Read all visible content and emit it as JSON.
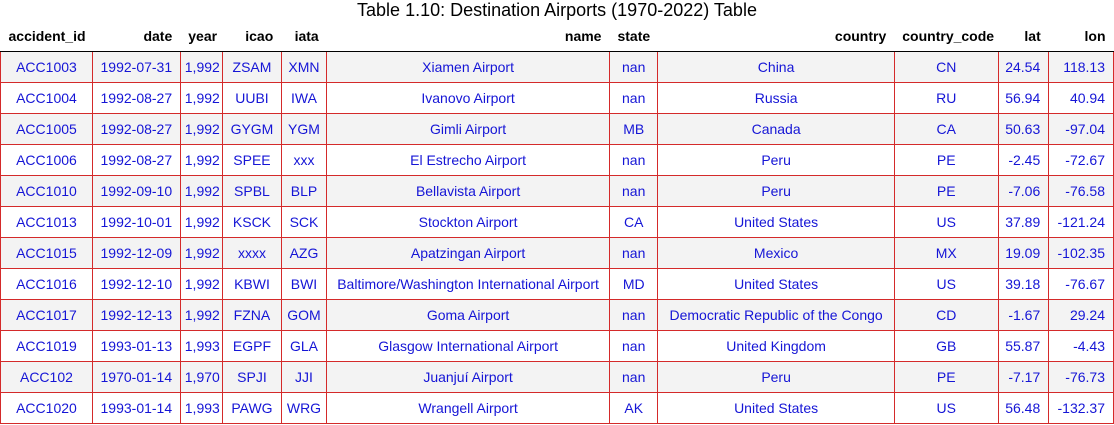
{
  "caption": "Table 1.10: Destination Airports (1970-2022) Table",
  "columns": [
    "accident_id",
    "date",
    "year",
    "icao",
    "iata",
    "name",
    "state",
    "country",
    "country_code",
    "lat",
    "lon"
  ],
  "rows": [
    [
      "ACC1003",
      "1992-07-31",
      "1,992",
      "ZSAM",
      "XMN",
      "Xiamen Airport",
      "nan",
      "China",
      "CN",
      "24.54",
      "118.13"
    ],
    [
      "ACC1004",
      "1992-08-27",
      "1,992",
      "UUBI",
      "IWA",
      "Ivanovo Airport",
      "nan",
      "Russia",
      "RU",
      "56.94",
      "40.94"
    ],
    [
      "ACC1005",
      "1992-08-27",
      "1,992",
      "GYGM",
      "YGM",
      "Gimli Airport",
      "MB",
      "Canada",
      "CA",
      "50.63",
      "-97.04"
    ],
    [
      "ACC1006",
      "1992-08-27",
      "1,992",
      "SPEE",
      "xxx",
      "El Estrecho Airport",
      "nan",
      "Peru",
      "PE",
      "-2.45",
      "-72.67"
    ],
    [
      "ACC1010",
      "1992-09-10",
      "1,992",
      "SPBL",
      "BLP",
      "Bellavista Airport",
      "nan",
      "Peru",
      "PE",
      "-7.06",
      "-76.58"
    ],
    [
      "ACC1013",
      "1992-10-01",
      "1,992",
      "KSCK",
      "SCK",
      "Stockton Airport",
      "CA",
      "United States",
      "US",
      "37.89",
      "-121.24"
    ],
    [
      "ACC1015",
      "1992-12-09",
      "1,992",
      "xxxx",
      "AZG",
      "Apatzingan Airport",
      "nan",
      "Mexico",
      "MX",
      "19.09",
      "-102.35"
    ],
    [
      "ACC1016",
      "1992-12-10",
      "1,992",
      "KBWI",
      "BWI",
      "Baltimore/Washington International Airport",
      "MD",
      "United States",
      "US",
      "39.18",
      "-76.67"
    ],
    [
      "ACC1017",
      "1992-12-13",
      "1,992",
      "FZNA",
      "GOM",
      "Goma Airport",
      "nan",
      "Democratic Republic of the Congo",
      "CD",
      "-1.67",
      "29.24"
    ],
    [
      "ACC1019",
      "1993-01-13",
      "1,993",
      "EGPF",
      "GLA",
      "Glasgow International Airport",
      "nan",
      "United Kingdom",
      "GB",
      "55.87",
      "-4.43"
    ],
    [
      "ACC102",
      "1970-01-14",
      "1,970",
      "SPJI",
      "JJI",
      "Juanjuí Airport",
      "nan",
      "Peru",
      "PE",
      "-7.17",
      "-76.73"
    ],
    [
      "ACC1020",
      "1993-01-14",
      "1,993",
      "PAWG",
      "WRG",
      "Wrangell Airport",
      "AK",
      "United States",
      "US",
      "56.48",
      "-132.37"
    ]
  ]
}
